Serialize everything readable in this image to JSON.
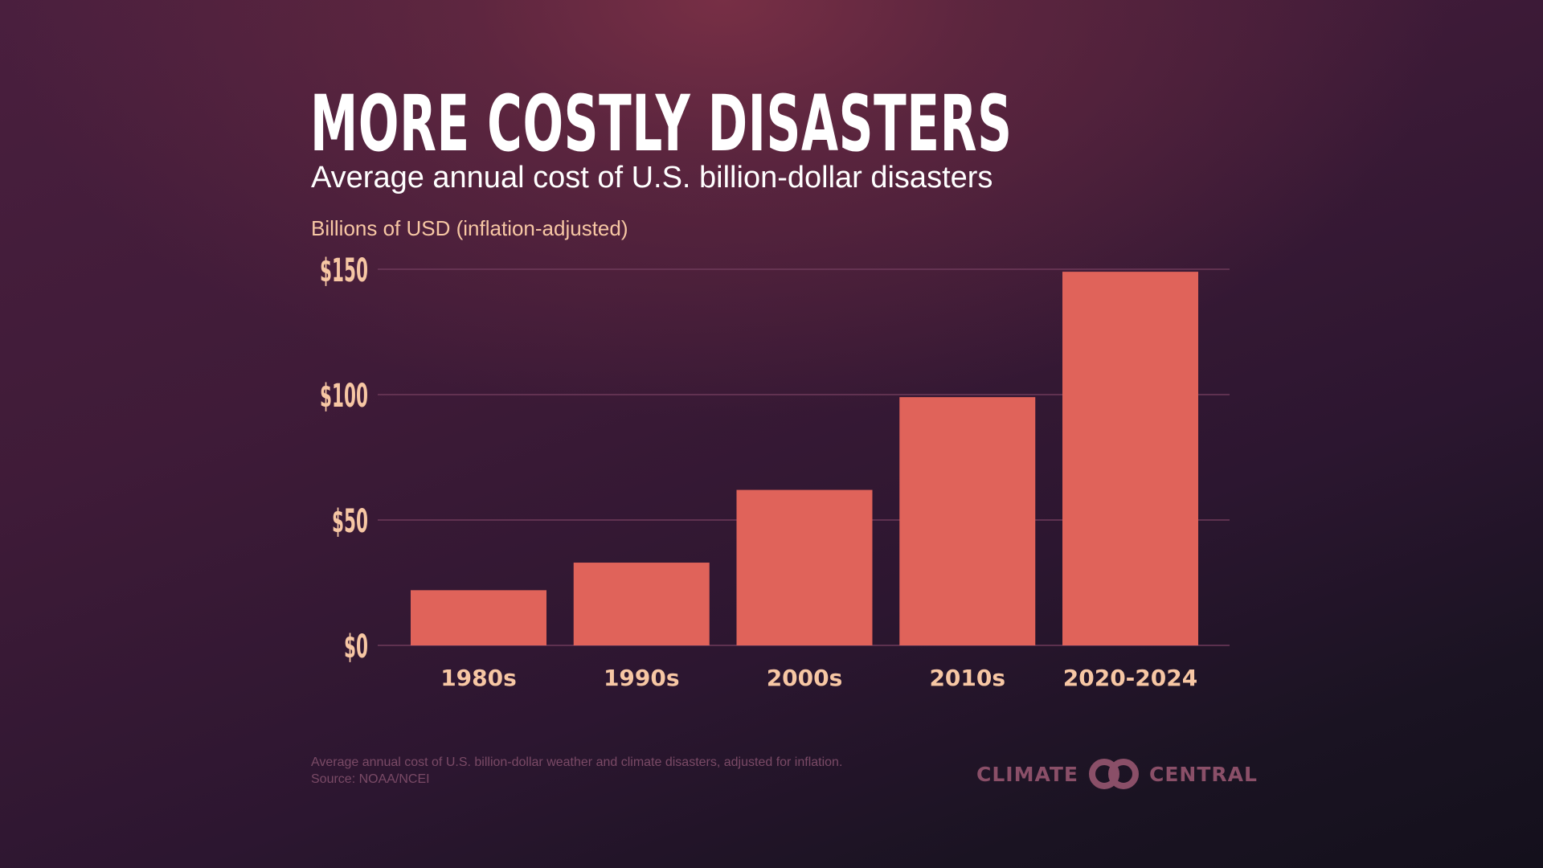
{
  "header": {
    "title": "MORE COSTLY DISASTERS",
    "subtitle": "Average annual cost of U.S. billion-dollar disasters"
  },
  "footer": {
    "note_line1": "Average annual cost of U.S. billion-dollar weather and climate disasters, adjusted for inflation.",
    "note_line2": "Source: NOAA/NCEI",
    "logo": {
      "left_word": "CLIMATE",
      "right_word": "CENTRAL",
      "icon": "interlocked-rings-icon"
    }
  },
  "colors": {
    "bar": "#e0635a",
    "tick_label": "#f7c7a4",
    "gridline": "#6e3a5a",
    "title": "#ffffff",
    "logo": "#8a4f68"
  },
  "chart_data": {
    "type": "bar",
    "title": "MORE COSTLY DISASTERS",
    "subtitle": "Average annual cost of U.S. billion-dollar disasters",
    "xlabel": "",
    "ylabel": "Billions of USD (inflation-adjusted)",
    "categories": [
      "1980s",
      "1990s",
      "2000s",
      "2010s",
      "2020-2024"
    ],
    "values": [
      22,
      33,
      62,
      99,
      149
    ],
    "ylim": [
      0,
      150
    ],
    "yticks": [
      0,
      50,
      100,
      150
    ],
    "ytick_labels": [
      "$0",
      "$50",
      "$100",
      "$150"
    ],
    "grid": true,
    "legend": "none"
  }
}
